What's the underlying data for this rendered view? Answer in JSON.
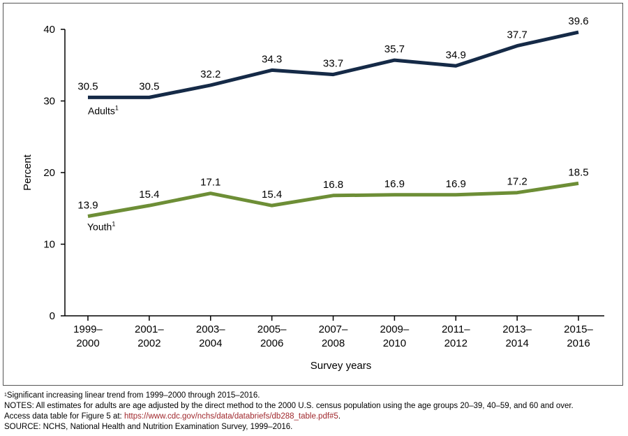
{
  "chart_data": {
    "type": "line",
    "categories": [
      [
        "1999–",
        "2000"
      ],
      [
        "2001–",
        "2002"
      ],
      [
        "2003–",
        "2004"
      ],
      [
        "2005–",
        "2006"
      ],
      [
        "2007–",
        "2008"
      ],
      [
        "2009–",
        "2010"
      ],
      [
        "2011–",
        "2012"
      ],
      [
        "2013–",
        "2014"
      ],
      [
        "2015–",
        "2016"
      ]
    ],
    "series": [
      {
        "name": "Adults",
        "superscript": "1",
        "color": "#152a47",
        "values": [
          30.5,
          30.5,
          32.2,
          34.3,
          33.7,
          35.7,
          34.9,
          37.7,
          39.6
        ]
      },
      {
        "name": "Youth",
        "superscript": "1",
        "color": "#6d8e36",
        "values": [
          13.9,
          15.4,
          17.1,
          15.4,
          16.8,
          16.9,
          16.9,
          17.2,
          18.5
        ]
      }
    ],
    "xlabel": "Survey years",
    "ylabel": "Percent",
    "ylim": [
      0,
      40
    ],
    "yticks": [
      0,
      10,
      20,
      30,
      40
    ],
    "grid": false
  },
  "notes": {
    "footnote_marker": "1",
    "footnote": "Significant increasing linear trend from 1999–2000 through 2015–2016.",
    "notes_line": "NOTES: All estimates for adults are age adjusted by the direct method to the 2000 U.S. census population using the age groups 20–39, 40–59, and 60 and over.",
    "access_prefix": "Access data table for Figure 5 at: ",
    "access_link": "https://www.cdc.gov/nchs/data/databriefs/db288_table.pdf#5",
    "access_suffix": ".",
    "source": "SOURCE: NCHS, National Health and Nutrition Examination Survey, 1999–2016."
  }
}
